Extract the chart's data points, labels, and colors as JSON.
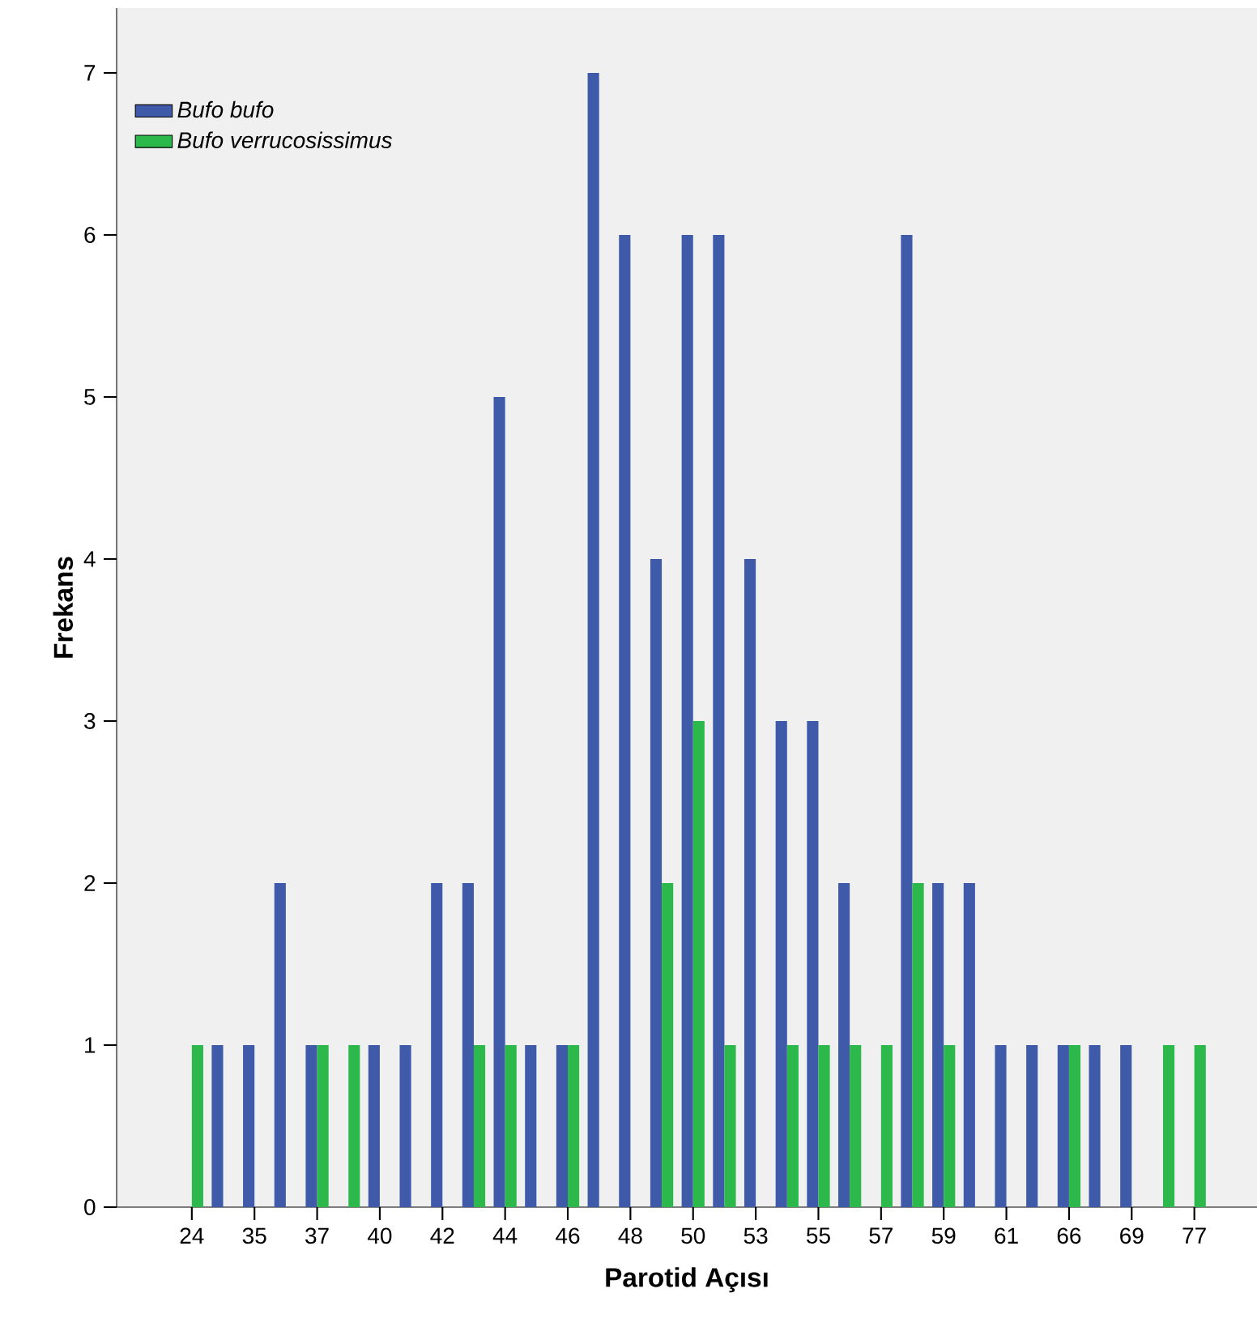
{
  "chart_data": {
    "type": "bar",
    "xlabel": "Parotid Açısı",
    "ylabel": "Frekans",
    "categories": [
      "24",
      null,
      "35",
      null,
      "37",
      null,
      "40",
      null,
      "42",
      null,
      "44",
      null,
      "46",
      null,
      "48",
      null,
      "50",
      null,
      "53",
      null,
      "55",
      null,
      "57",
      null,
      "59",
      null,
      "61",
      null,
      "66",
      null,
      "69",
      null,
      "77"
    ],
    "series": [
      {
        "name": "Bufo bufo",
        "color": "#3e5aa8",
        "values": [
          0,
          1,
          1,
          2,
          1,
          0,
          1,
          1,
          2,
          2,
          5,
          1,
          1,
          7,
          6,
          4,
          6,
          6,
          4,
          3,
          3,
          2,
          0,
          6,
          2,
          2,
          1,
          1,
          1,
          1,
          1,
          0,
          0
        ]
      },
      {
        "name": "Bufo verrucosissimus",
        "color": "#2db84c",
        "values": [
          1,
          0,
          0,
          0,
          1,
          1,
          0,
          0,
          0,
          1,
          1,
          0,
          1,
          0,
          0,
          2,
          3,
          1,
          0,
          1,
          1,
          1,
          1,
          2,
          1,
          0,
          0,
          0,
          1,
          0,
          0,
          1,
          1
        ]
      }
    ],
    "ylim": [
      0,
      7.4
    ],
    "yticks": [
      0,
      1,
      2,
      3,
      4,
      5,
      6,
      7
    ],
    "grid": false,
    "legend": "top left"
  }
}
